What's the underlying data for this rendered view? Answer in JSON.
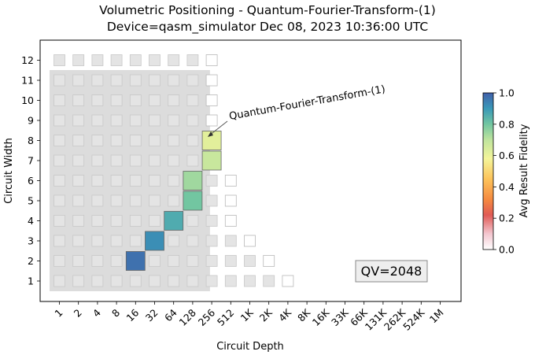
{
  "chart_data": {
    "type": "heatmap",
    "title_line1": "Volumetric Positioning - Quantum-Fourier-Transform-(1)",
    "title_line2": "Device=qasm_simulator  Dec 08, 2023 10:36:00 UTC",
    "xlabel": "Circuit Depth",
    "ylabel": "Circuit Width",
    "x_ticks": [
      "1",
      "2",
      "4",
      "8",
      "16",
      "32",
      "64",
      "128",
      "256",
      "512",
      "1K",
      "2K",
      "4K",
      "8K",
      "16K",
      "33K",
      "66K",
      "131K",
      "262K",
      "524K",
      "1M"
    ],
    "y_ticks": [
      "1",
      "2",
      "3",
      "4",
      "5",
      "6",
      "7",
      "8",
      "9",
      "10",
      "11",
      "12"
    ],
    "qv_label": "QV=2048",
    "qv_region": {
      "depth_max": "128",
      "width_max": 11
    },
    "annotation": "Quantum-Fourier-Transform-(1)",
    "annotation_target": {
      "depth": "256",
      "width": 8
    },
    "colorbar": {
      "label": "Avg Result Fidelity",
      "ticks": [
        "0.0",
        "0.2",
        "0.4",
        "0.6",
        "0.8",
        "1.0"
      ],
      "range": [
        0.0,
        1.0
      ]
    },
    "background_cells": [
      {
        "width": 1,
        "depths": [
          "1",
          "2",
          "4",
          "8",
          "16",
          "32",
          "64",
          "128"
        ],
        "type": "filled"
      },
      {
        "width": 1,
        "depths": [
          "256",
          "512",
          "1K",
          "2K"
        ],
        "type": "filled"
      },
      {
        "width": 1,
        "depths": [
          "4K"
        ],
        "type": "outline"
      },
      {
        "width": 2,
        "depths": [
          "1",
          "2",
          "4",
          "8",
          "16",
          "32",
          "64",
          "128",
          "256",
          "512",
          "1K"
        ],
        "type": "filled"
      },
      {
        "width": 2,
        "depths": [
          "2K"
        ],
        "type": "outline"
      },
      {
        "width": 3,
        "depths": [
          "1",
          "2",
          "4",
          "8",
          "16",
          "32",
          "64",
          "128",
          "256",
          "512"
        ],
        "type": "filled"
      },
      {
        "width": 3,
        "depths": [
          "1K"
        ],
        "type": "outline"
      },
      {
        "width": 4,
        "depths": [
          "1",
          "2",
          "4",
          "8",
          "16",
          "32",
          "64",
          "128",
          "256"
        ],
        "type": "filled"
      },
      {
        "width": 4,
        "depths": [
          "512"
        ],
        "type": "outline"
      },
      {
        "width": 5,
        "depths": [
          "1",
          "2",
          "4",
          "8",
          "16",
          "32",
          "64",
          "128",
          "256"
        ],
        "type": "filled"
      },
      {
        "width": 5,
        "depths": [
          "512"
        ],
        "type": "outline"
      },
      {
        "width": 6,
        "depths": [
          "1",
          "2",
          "4",
          "8",
          "16",
          "32",
          "64",
          "128",
          "256"
        ],
        "type": "filled"
      },
      {
        "width": 6,
        "depths": [
          "512"
        ],
        "type": "outline"
      },
      {
        "width": 7,
        "depths": [
          "1",
          "2",
          "4",
          "8",
          "16",
          "32",
          "64",
          "128"
        ],
        "type": "filled"
      },
      {
        "width": 7,
        "depths": [
          "256"
        ],
        "type": "outline"
      },
      {
        "width": 8,
        "depths": [
          "1",
          "2",
          "4",
          "8",
          "16",
          "32",
          "64",
          "128"
        ],
        "type": "filled"
      },
      {
        "width": 8,
        "depths": [
          "256"
        ],
        "type": "outline"
      },
      {
        "width": 9,
        "depths": [
          "1",
          "2",
          "4",
          "8",
          "16",
          "32",
          "64",
          "128"
        ],
        "type": "filled"
      },
      {
        "width": 9,
        "depths": [
          "256"
        ],
        "type": "outline"
      },
      {
        "width": 10,
        "depths": [
          "1",
          "2",
          "4",
          "8",
          "16",
          "32",
          "64",
          "128"
        ],
        "type": "filled"
      },
      {
        "width": 10,
        "depths": [
          "256"
        ],
        "type": "outline"
      },
      {
        "width": 11,
        "depths": [
          "1",
          "2",
          "4",
          "8",
          "16",
          "32",
          "64",
          "128"
        ],
        "type": "filled"
      },
      {
        "width": 11,
        "depths": [
          "256"
        ],
        "type": "outline"
      },
      {
        "width": 12,
        "depths": [
          "1",
          "2",
          "4",
          "8",
          "16",
          "32",
          "64",
          "128"
        ],
        "type": "filled"
      },
      {
        "width": 12,
        "depths": [
          "256"
        ],
        "type": "outline"
      }
    ],
    "points": [
      {
        "depth": "16",
        "width": 2,
        "fidelity": 0.97
      },
      {
        "depth": "32",
        "width": 3,
        "fidelity": 0.92
      },
      {
        "depth": "64",
        "width": 4,
        "fidelity": 0.86
      },
      {
        "depth": "128",
        "width": 5,
        "fidelity": 0.8
      },
      {
        "depth": "128",
        "width": 6,
        "fidelity": 0.74
      },
      {
        "depth": "256",
        "width": 7,
        "fidelity": 0.68
      },
      {
        "depth": "256",
        "width": 8,
        "fidelity": 0.62
      }
    ]
  }
}
